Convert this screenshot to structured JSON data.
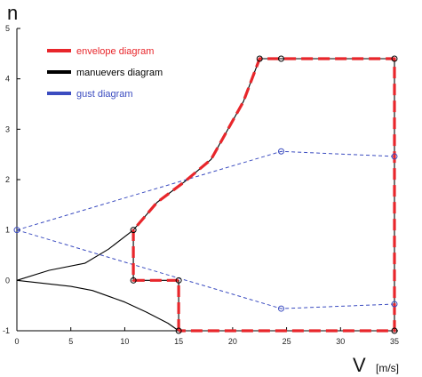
{
  "chart_data": {
    "type": "line",
    "xlabel": "V",
    "xunit": "[m/s]",
    "ylabel": "n",
    "xlim": [
      0,
      35
    ],
    "ylim": [
      -1,
      5
    ],
    "x_ticks": [
      0,
      5,
      10,
      15,
      20,
      25,
      30,
      35
    ],
    "y_ticks": [
      -1,
      0,
      1,
      2,
      3,
      4,
      5
    ],
    "grid": false,
    "legend_position": "top-left",
    "legend": [
      {
        "label": "envelope diagram",
        "color": "#e8262b",
        "text_color": "#e8262b"
      },
      {
        "label": "manuevers diagram",
        "color": "#000000",
        "text_color": "#000000"
      },
      {
        "label": "gust diagram",
        "color": "#3b4cc0",
        "text_color": "#3b4cc0"
      }
    ],
    "series": [
      {
        "name": "manuevers diagram",
        "color": "#000000",
        "style": "solid",
        "segments": [
          [
            [
              0,
              0
            ],
            [
              3,
              0.2
            ],
            [
              6.3,
              0.34
            ],
            [
              8.5,
              0.62
            ],
            [
              10.8,
              1.0
            ],
            [
              13,
              1.55
            ],
            [
              15.5,
              1.95
            ],
            [
              18,
              2.4
            ],
            [
              21,
              3.55
            ],
            [
              22.5,
              4.4
            ],
            [
              35,
              4.4
            ],
            [
              35,
              -1
            ],
            [
              15,
              -1
            ],
            [
              14,
              -0.85
            ],
            [
              12,
              -0.63
            ],
            [
              10,
              -0.43
            ],
            [
              7,
              -0.2
            ],
            [
              5,
              -0.12
            ],
            [
              0,
              0
            ]
          ],
          [
            [
              10.8,
              1.0
            ],
            [
              10.8,
              0
            ],
            [
              15,
              0
            ],
            [
              15,
              -1
            ]
          ]
        ]
      },
      {
        "name": "envelope diagram",
        "color": "#e8262b",
        "style": "dashed",
        "segments": [
          [
            [
              15,
              -1
            ],
            [
              15,
              0
            ],
            [
              10.8,
              0
            ],
            [
              10.8,
              1.0
            ],
            [
              13,
              1.55
            ],
            [
              15.5,
              1.95
            ],
            [
              18,
              2.4
            ],
            [
              21,
              3.55
            ],
            [
              22.5,
              4.4
            ],
            [
              35,
              4.4
            ],
            [
              35,
              -1
            ],
            [
              15,
              -1
            ]
          ]
        ],
        "markers": [
          [
            10.8,
            1.0
          ],
          [
            10.8,
            0
          ],
          [
            15,
            0
          ],
          [
            15,
            -1
          ],
          [
            22.5,
            4.4
          ],
          [
            24.5,
            4.4
          ],
          [
            35,
            4.4
          ],
          [
            35,
            -1
          ]
        ]
      },
      {
        "name": "gust diagram",
        "color": "#3b4cc0",
        "style": "dashed",
        "segments": [
          [
            [
              0,
              1
            ],
            [
              24.5,
              2.56
            ],
            [
              35,
              2.46
            ]
          ],
          [
            [
              0,
              1
            ],
            [
              24.5,
              -0.56
            ],
            [
              35,
              -0.47
            ]
          ]
        ],
        "markers": [
          [
            0,
            1
          ],
          [
            24.5,
            2.56
          ],
          [
            35,
            2.46
          ],
          [
            24.5,
            -0.56
          ],
          [
            35,
            -0.47
          ]
        ]
      }
    ]
  }
}
